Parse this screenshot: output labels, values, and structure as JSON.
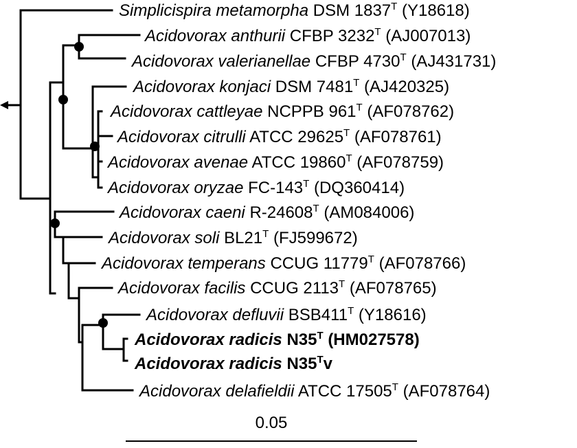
{
  "tree": {
    "taxa": [
      {
        "genus_species": "Simplicispira metamorpha",
        "strain": "DSM 1837",
        "type_mark": "T",
        "accession": "(Y18618)",
        "bold": false
      },
      {
        "genus_species": "Acidovorax anthurii",
        "strain": "CFBP 3232",
        "type_mark": "T",
        "accession": "(AJ007013)",
        "bold": false
      },
      {
        "genus_species": "Acidovorax valerianellae",
        "strain": "CFBP 4730",
        "type_mark": "T",
        "accession": "(AJ431731)",
        "bold": false
      },
      {
        "genus_species": "Acidovorax konjaci",
        "strain": "DSM 7481",
        "type_mark": "T",
        "accession": "(AJ420325)",
        "bold": false
      },
      {
        "genus_species": "Acidovorax cattleyae",
        "strain": "NCPPB 961",
        "type_mark": "T",
        "accession": "(AF078762)",
        "bold": false
      },
      {
        "genus_species": "Acidovorax citrulli",
        "strain": "ATCC 29625",
        "type_mark": "T",
        "accession": "(AF078761)",
        "bold": false
      },
      {
        "genus_species": "Acidovorax avenae",
        "strain": "ATCC 19860",
        "type_mark": "T",
        "accession": "(AF078759)",
        "bold": false
      },
      {
        "genus_species": "Acidovorax oryzae",
        "strain": "FC-143",
        "type_mark": "T",
        "accession": "(DQ360414)",
        "bold": false
      },
      {
        "genus_species": "Acidovorax caeni",
        "strain": "R-24608",
        "type_mark": "T",
        "accession": "(AM084006)",
        "bold": false
      },
      {
        "genus_species": "Acidovorax soli",
        "strain": "BL21",
        "type_mark": "T",
        "accession": "(FJ599672)",
        "bold": false
      },
      {
        "genus_species": "Acidovorax temperans",
        "strain": "CCUG 11779",
        "type_mark": "T",
        "accession": "(AF078766)",
        "bold": false
      },
      {
        "genus_species": "Acidovorax facilis",
        "strain": "CCUG 2113",
        "type_mark": "T",
        "accession": "(AF078765)",
        "bold": false
      },
      {
        "genus_species": "Acidovorax defluvii",
        "strain": "BSB411",
        "type_mark": "T",
        "accession": "(Y18616)",
        "bold": false
      },
      {
        "genus_species": "Acidovorax radicis",
        "strain": "N35",
        "type_mark": "T",
        "accession": "(HM027578)",
        "bold": true
      },
      {
        "genus_species": "Acidovorax radicis",
        "strain": "N35",
        "type_mark": "T",
        "accession": "v",
        "bold": true
      },
      {
        "genus_species": "Acidovorax delafieldii",
        "strain": "ATCC 17505",
        "type_mark": "T",
        "accession": "(AF078764)",
        "bold": false
      }
    ],
    "scale_bar_label": "0.05"
  }
}
